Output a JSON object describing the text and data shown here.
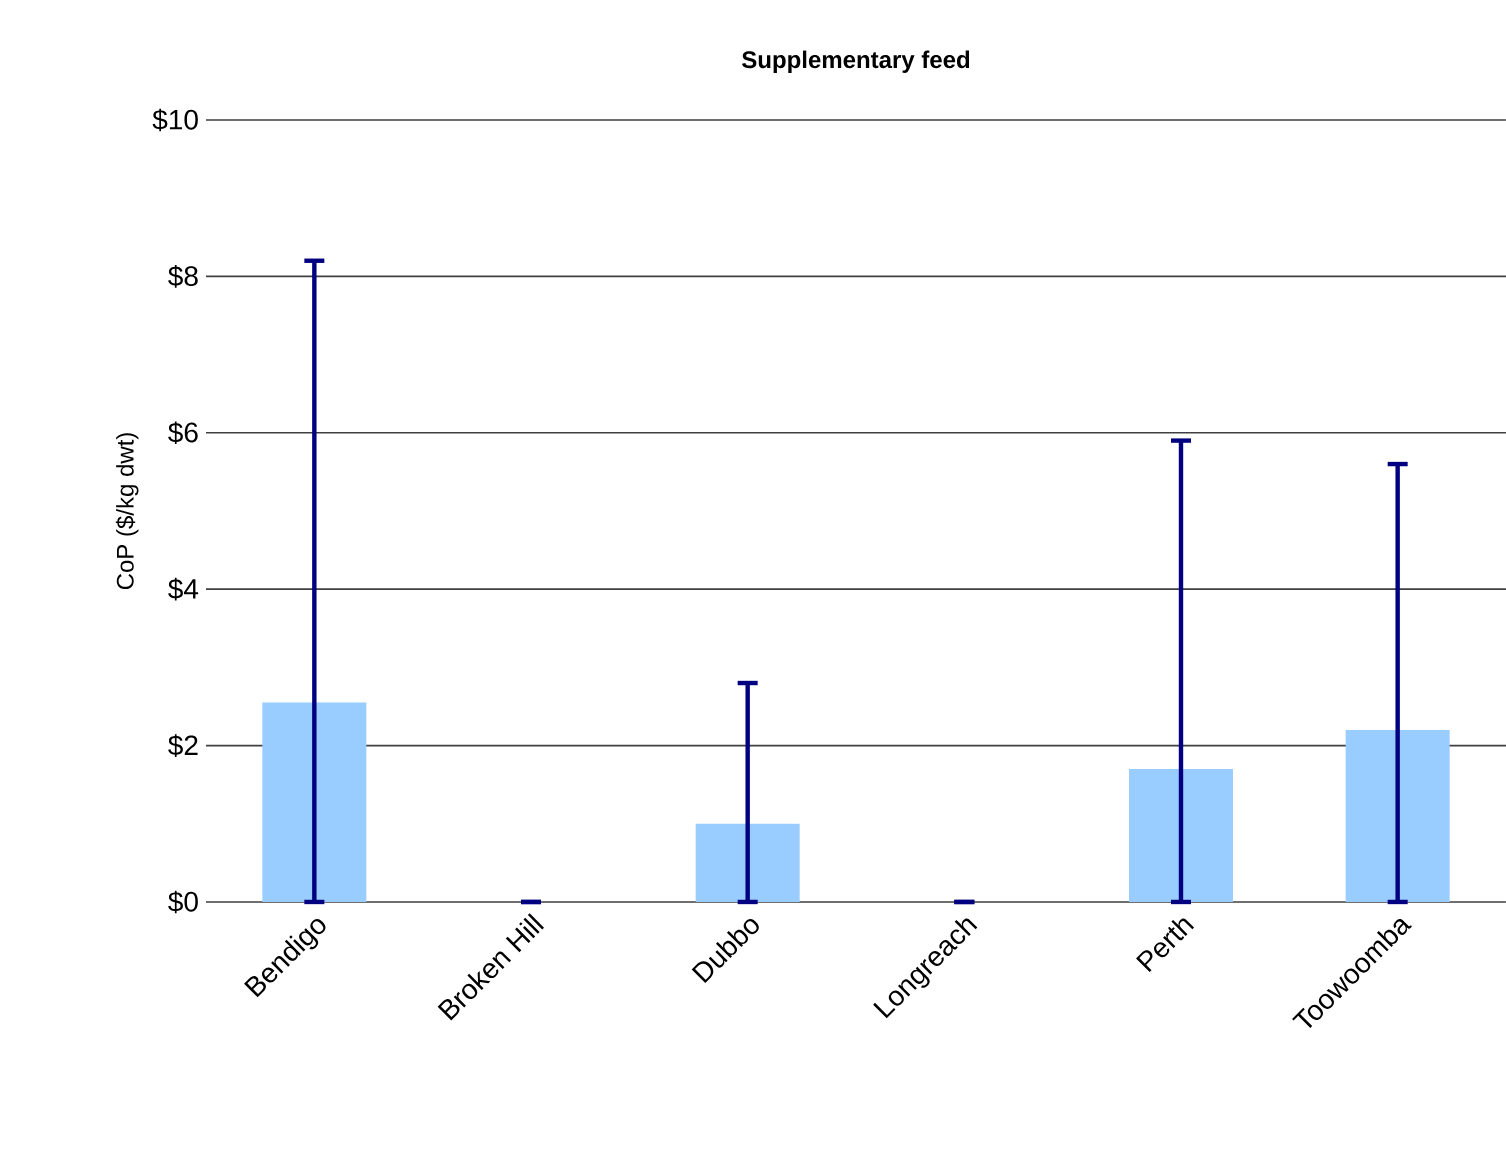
{
  "chart_data": {
    "type": "bar",
    "title": "Supplementary feed",
    "ylabel": "CoP ($/kg dwt)",
    "categories": [
      "Bendigo",
      "Broken Hill",
      "Dubbo",
      "Longreach",
      "Perth",
      "Toowoomba"
    ],
    "values": [
      2.55,
      0,
      1.0,
      0,
      1.7,
      2.2
    ],
    "errors": [
      [
        0,
        8.2
      ],
      [
        0,
        0
      ],
      [
        0,
        2.8
      ],
      [
        0,
        0
      ],
      [
        0,
        5.9
      ],
      [
        0,
        5.6
      ]
    ],
    "color": "#99ccff",
    "ylim": [
      0,
      10
    ],
    "yticks": [
      {
        "value": 0,
        "label": "$0"
      },
      {
        "value": 2,
        "label": "$2"
      },
      {
        "value": 4,
        "label": "$4"
      },
      {
        "value": 6,
        "label": "$6"
      },
      {
        "value": 8,
        "label": "$8"
      },
      {
        "value": 10,
        "label": "$10"
      }
    ],
    "grid": "y"
  }
}
